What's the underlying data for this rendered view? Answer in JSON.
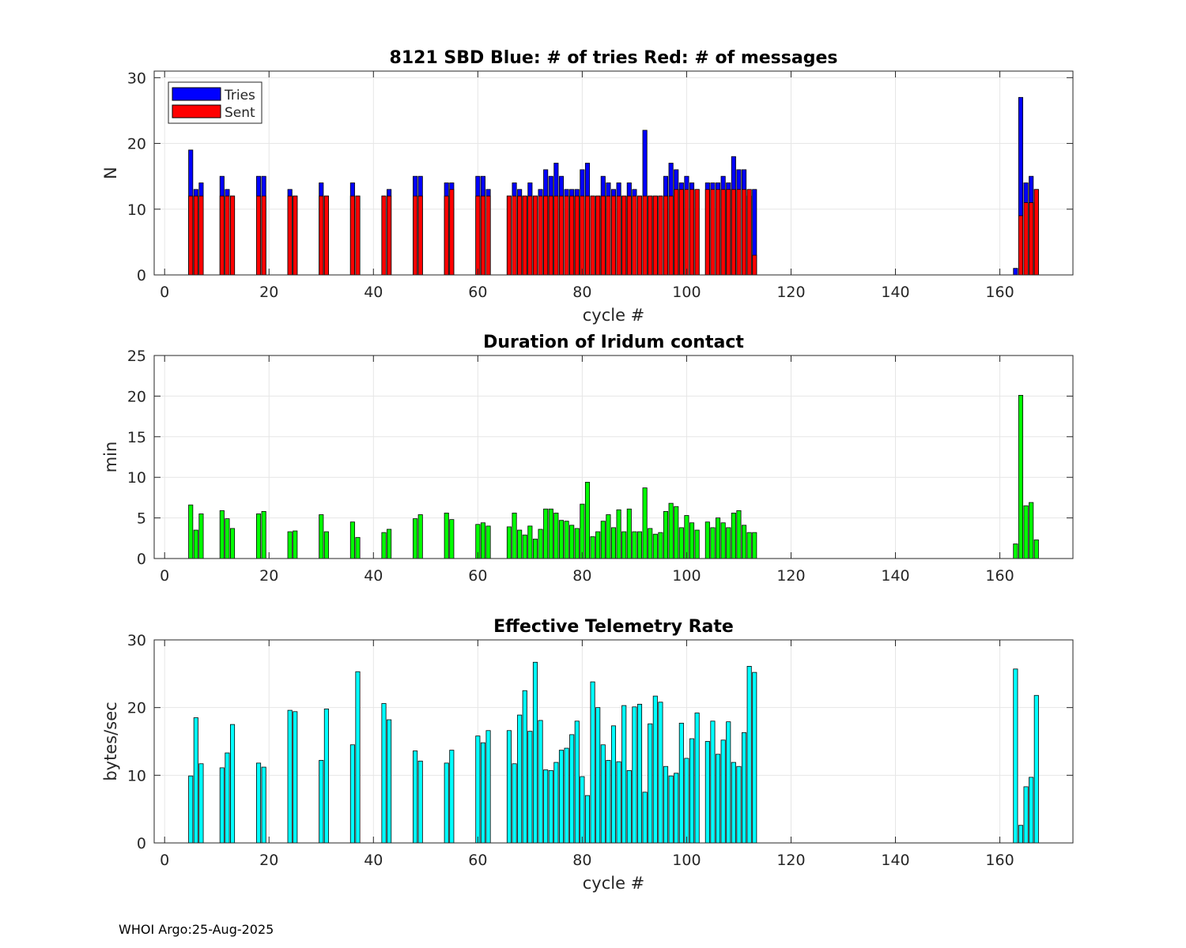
{
  "footer": "WHOI Argo:25-Aug-2025",
  "colors": {
    "tries": "#0000ff",
    "sent": "#ff0000",
    "duration": "#00ff00",
    "rate": "#00ffff",
    "grid": "#e6e6e6"
  },
  "chart_data": [
    {
      "type": "bar",
      "stacked": true,
      "title": "8121 SBD  Blue: # of tries   Red: # of messages",
      "xlabel": "cycle #",
      "ylabel": "N",
      "xlim": [
        -2,
        174
      ],
      "ylim": [
        0,
        31
      ],
      "xticks": [
        0,
        20,
        40,
        60,
        80,
        100,
        120,
        140,
        160
      ],
      "yticks": [
        0,
        10,
        20,
        30
      ],
      "grid": true,
      "legend": {
        "position": "top-left",
        "entries": [
          "Tries",
          "Sent"
        ]
      },
      "x": [
        5,
        6,
        7,
        11,
        12,
        13,
        18,
        19,
        24,
        25,
        30,
        31,
        36,
        37,
        42,
        43,
        48,
        49,
        54,
        55,
        60,
        61,
        62,
        66,
        67,
        68,
        69,
        70,
        71,
        72,
        73,
        74,
        75,
        76,
        77,
        78,
        79,
        80,
        81,
        82,
        83,
        84,
        85,
        86,
        87,
        88,
        89,
        90,
        91,
        92,
        93,
        94,
        95,
        96,
        97,
        98,
        99,
        100,
        101,
        102,
        104,
        105,
        106,
        107,
        108,
        109,
        110,
        111,
        112,
        113,
        163,
        164,
        165,
        166,
        167
      ],
      "series": [
        {
          "name": "Tries",
          "values": [
            19,
            13,
            14,
            15,
            13,
            12,
            15,
            15,
            13,
            12,
            14,
            12,
            14,
            12,
            12,
            13,
            15,
            15,
            14,
            14,
            15,
            15,
            13,
            12,
            14,
            13,
            12,
            14,
            12,
            13,
            16,
            15,
            17,
            15,
            13,
            13,
            13,
            16,
            17,
            12,
            12,
            15,
            14,
            13,
            14,
            12,
            14,
            13,
            12,
            22,
            12,
            12,
            12,
            15,
            17,
            16,
            14,
            15,
            14,
            13,
            14,
            14,
            14,
            15,
            14,
            18,
            16,
            16,
            12,
            13,
            1,
            27,
            14,
            15,
            13
          ]
        },
        {
          "name": "Sent",
          "values": [
            12,
            12,
            12,
            12,
            12,
            12,
            12,
            12,
            12,
            12,
            12,
            12,
            12,
            12,
            12,
            12,
            12,
            12,
            12,
            13,
            12,
            12,
            12,
            12,
            12,
            12,
            12,
            12,
            12,
            12,
            12,
            12,
            12,
            12,
            12,
            12,
            12,
            12,
            12,
            12,
            12,
            12,
            12,
            12,
            12,
            12,
            12,
            12,
            12,
            12,
            12,
            12,
            12,
            12,
            12,
            13,
            13,
            13,
            13,
            13,
            13,
            13,
            13,
            13,
            13,
            13,
            13,
            13,
            13,
            3,
            0,
            9,
            11,
            11,
            13
          ]
        }
      ]
    },
    {
      "type": "bar",
      "title": "Duration of Iridum contact",
      "xlabel": "",
      "ylabel": "min",
      "xlim": [
        -2,
        174
      ],
      "ylim": [
        0,
        25
      ],
      "xticks": [
        0,
        20,
        40,
        60,
        80,
        100,
        120,
        140,
        160
      ],
      "yticks": [
        0,
        5,
        10,
        15,
        20,
        25
      ],
      "grid": true,
      "x": [
        5,
        6,
        7,
        11,
        12,
        13,
        18,
        19,
        24,
        25,
        30,
        31,
        36,
        37,
        42,
        43,
        48,
        49,
        54,
        55,
        60,
        61,
        62,
        66,
        67,
        68,
        69,
        70,
        71,
        72,
        73,
        74,
        75,
        76,
        77,
        78,
        79,
        80,
        81,
        82,
        83,
        84,
        85,
        86,
        87,
        88,
        89,
        90,
        91,
        92,
        93,
        94,
        95,
        96,
        97,
        98,
        99,
        100,
        101,
        102,
        104,
        105,
        106,
        107,
        108,
        109,
        110,
        111,
        112,
        113,
        163,
        164,
        165,
        166,
        167
      ],
      "values": [
        6.6,
        3.5,
        5.5,
        5.9,
        4.9,
        3.7,
        5.5,
        5.8,
        3.3,
        3.4,
        5.4,
        3.3,
        4.5,
        2.6,
        3.2,
        3.6,
        4.9,
        5.4,
        5.6,
        4.8,
        4.2,
        4.4,
        4.0,
        3.9,
        5.6,
        3.5,
        2.9,
        4.0,
        2.4,
        3.6,
        6.1,
        6.1,
        5.6,
        4.7,
        4.6,
        4.1,
        3.7,
        6.7,
        9.4,
        2.7,
        3.3,
        4.6,
        5.4,
        3.8,
        6.0,
        3.3,
        6.1,
        3.3,
        3.3,
        8.7,
        3.7,
        3.0,
        3.2,
        5.8,
        6.8,
        6.4,
        3.8,
        5.3,
        4.4,
        3.5,
        4.5,
        3.8,
        5.0,
        4.4,
        3.8,
        5.6,
        5.9,
        4.1,
        3.2,
        3.2,
        1.8,
        20.1,
        6.5,
        6.9,
        2.3
      ]
    },
    {
      "type": "bar",
      "title": "Effective Telemetry Rate",
      "xlabel": "cycle #",
      "ylabel": "bytes/sec",
      "xlim": [
        -2,
        174
      ],
      "ylim": [
        0,
        30
      ],
      "xticks": [
        0,
        20,
        40,
        60,
        80,
        100,
        120,
        140,
        160
      ],
      "yticks": [
        0,
        10,
        20,
        30
      ],
      "grid": true,
      "x": [
        5,
        6,
        7,
        11,
        12,
        13,
        18,
        19,
        24,
        25,
        30,
        31,
        36,
        37,
        42,
        43,
        48,
        49,
        54,
        55,
        60,
        61,
        62,
        66,
        67,
        68,
        69,
        70,
        71,
        72,
        73,
        74,
        75,
        76,
        77,
        78,
        79,
        80,
        81,
        82,
        83,
        84,
        85,
        86,
        87,
        88,
        89,
        90,
        91,
        92,
        93,
        94,
        95,
        96,
        97,
        98,
        99,
        100,
        101,
        102,
        104,
        105,
        106,
        107,
        108,
        109,
        110,
        111,
        112,
        113,
        163,
        164,
        165,
        166,
        167
      ],
      "values": [
        9.9,
        18.5,
        11.7,
        11.1,
        13.3,
        17.5,
        11.8,
        11.2,
        19.6,
        19.4,
        12.2,
        19.8,
        14.5,
        25.3,
        20.6,
        18.2,
        13.6,
        12.1,
        11.8,
        13.7,
        15.8,
        14.8,
        16.6,
        16.6,
        11.7,
        18.9,
        22.5,
        16.5,
        26.7,
        18.1,
        10.8,
        10.7,
        11.9,
        13.7,
        14.0,
        16.0,
        18.0,
        9.8,
        7.0,
        23.8,
        20.0,
        14.5,
        12.2,
        17.3,
        12.0,
        20.3,
        10.7,
        20.1,
        20.5,
        7.5,
        17.6,
        21.7,
        20.8,
        11.3,
        9.9,
        10.3,
        17.7,
        12.5,
        15.4,
        19.2,
        15.0,
        18.0,
        13.1,
        15.2,
        17.9,
        11.9,
        11.3,
        16.3,
        26.1,
        25.2,
        25.7,
        2.6,
        8.3,
        9.7,
        21.8
      ]
    }
  ]
}
